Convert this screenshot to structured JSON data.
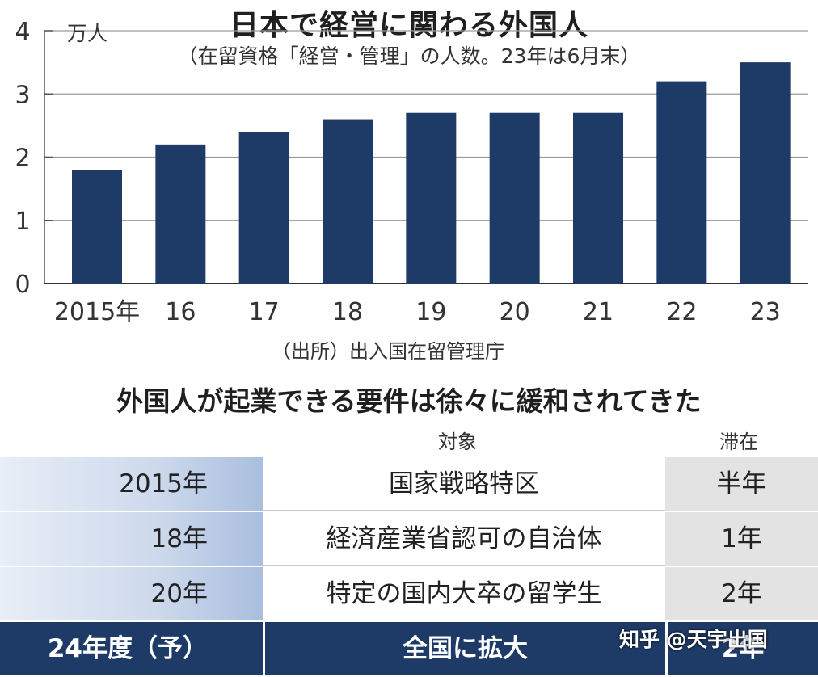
{
  "chart_data": {
    "type": "bar",
    "title": "日本で経営に関わる外国人",
    "subtitle": "（在留資格「経営・管理」の人数。23年は6月末）",
    "ylabel": "万人",
    "ylim": [
      0,
      4
    ],
    "yticks": [
      "0",
      "1",
      "2",
      "3",
      "4"
    ],
    "categories": [
      "2015年",
      "16",
      "17",
      "18",
      "19",
      "20",
      "21",
      "22",
      "23"
    ],
    "values": [
      1.8,
      2.2,
      2.4,
      2.6,
      2.7,
      2.7,
      2.7,
      3.2,
      3.5
    ],
    "bar_color": "#1e3a66",
    "source": "（出所）出入国在留管理庁"
  },
  "table": {
    "title": "外国人が起業できる要件は徐々に緩和されてきた",
    "headers": {
      "target": "対象",
      "stay": "滞在"
    },
    "rows": [
      {
        "year": "2015年",
        "target": "国家戦略特区",
        "stay": "半年"
      },
      {
        "year": "18年",
        "target": "経済産業省認可の自治体",
        "stay": "1年"
      },
      {
        "year": "20年",
        "target": "特定の国内大卒の留学生",
        "stay": "2年"
      },
      {
        "year": "24年度（予）",
        "target": "全国に拡大",
        "stay": "2年"
      }
    ],
    "highlight_color": "#1e3a66"
  },
  "watermark": "知乎 @天宇出国"
}
